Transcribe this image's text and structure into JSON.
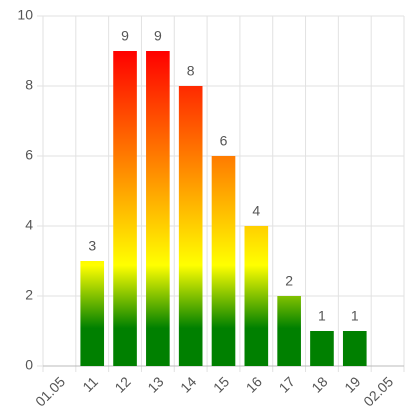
{
  "chart_data": {
    "type": "bar",
    "categories": [
      "01.05",
      "11",
      "12",
      "13",
      "14",
      "15",
      "16",
      "17",
      "18",
      "19",
      "02.05"
    ],
    "values": [
      null,
      3,
      9,
      9,
      8,
      6,
      4,
      2,
      1,
      1,
      null
    ],
    "gradient_colors": [
      "#008000",
      "#ffff00",
      "#ff8c00",
      "#ff0000"
    ],
    "ylim": [
      0,
      10
    ],
    "yticks": [
      0,
      2,
      4,
      6,
      8,
      10
    ],
    "grid": true
  }
}
